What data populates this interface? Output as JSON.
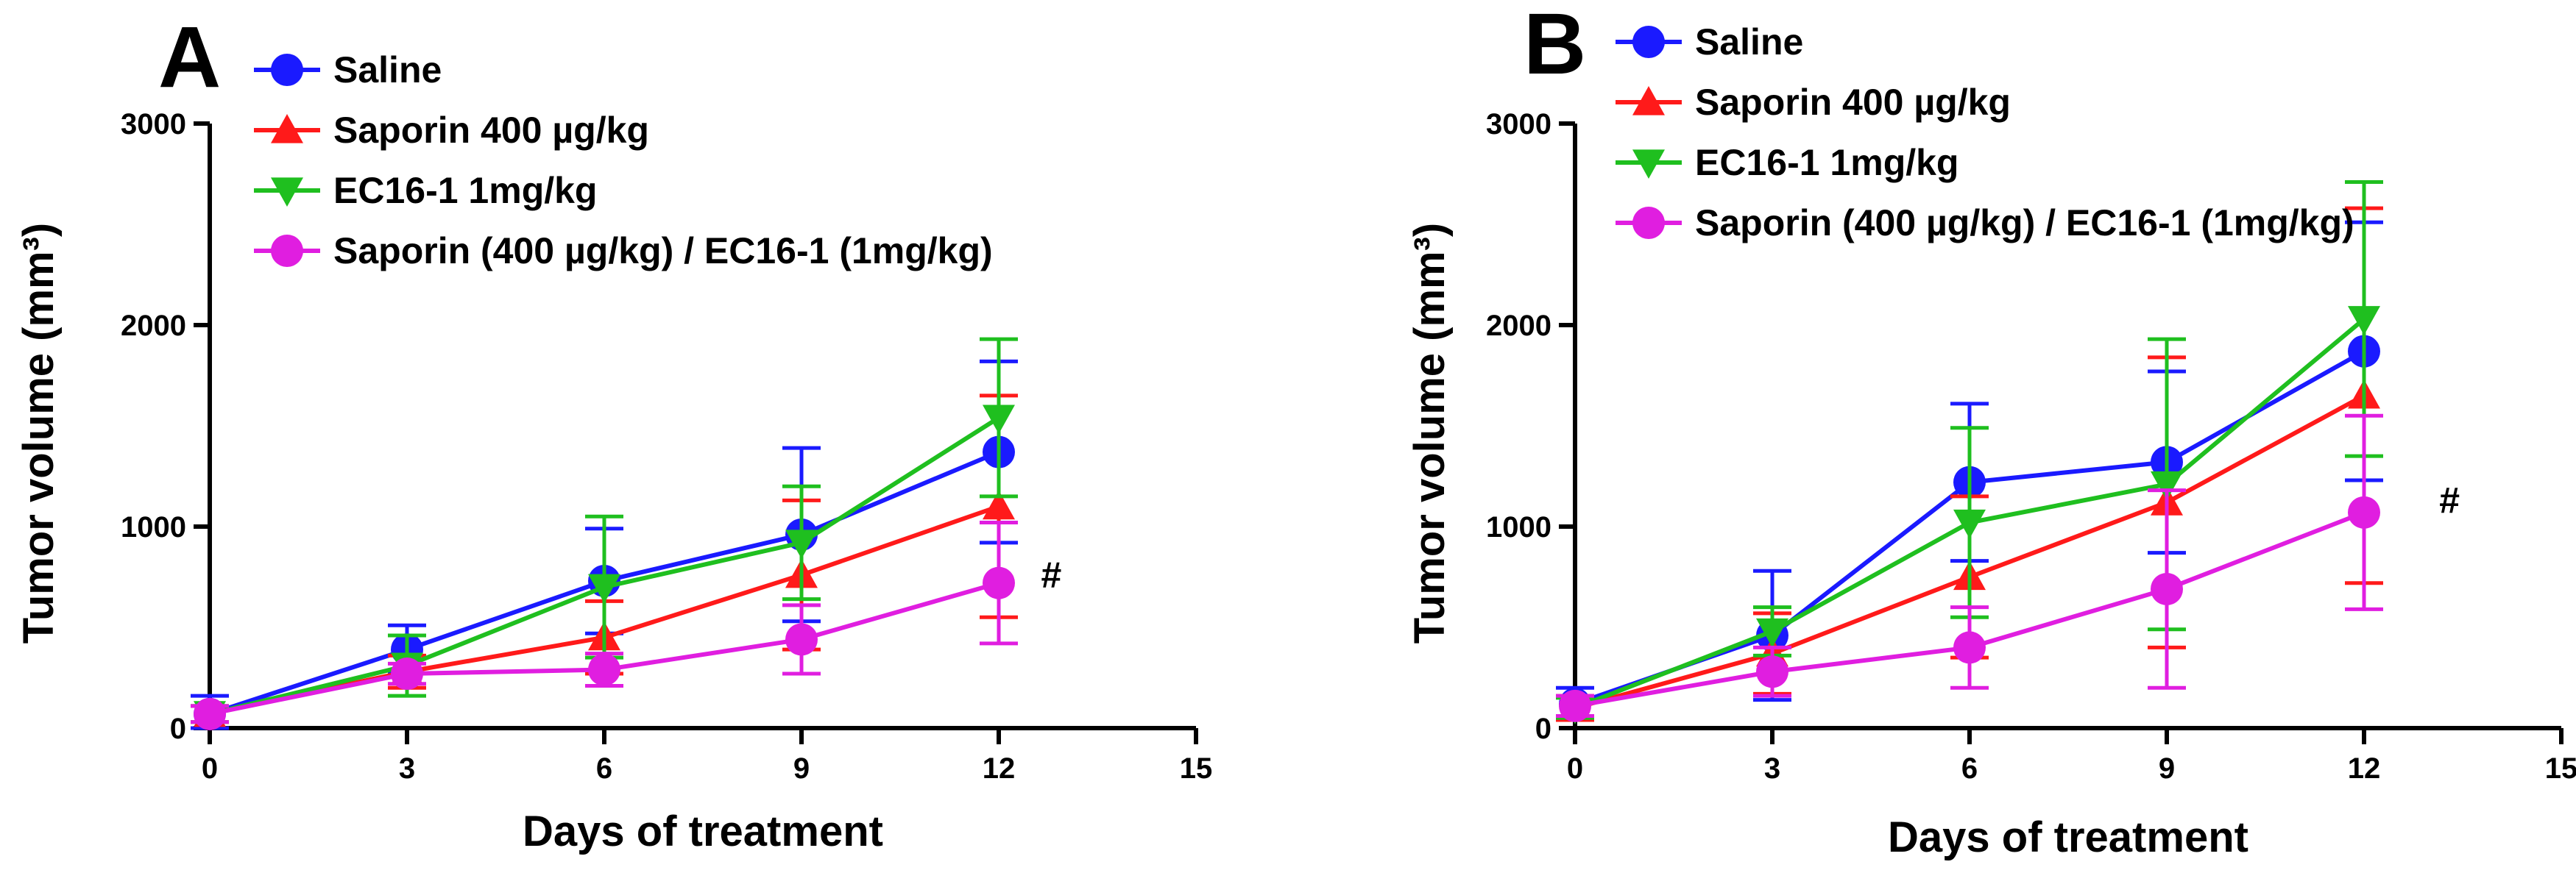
{
  "chart_data": [
    {
      "panel": "A",
      "type": "line",
      "xlabel": "Days of treatment",
      "ylabel": "Tumor volume (mm³)",
      "xlim": [
        0,
        15
      ],
      "ylim": [
        0,
        3000
      ],
      "xticks": [
        0,
        3,
        6,
        9,
        12,
        15
      ],
      "yticks": [
        0,
        1000,
        2000,
        3000
      ],
      "annotation": {
        "text": "#",
        "x": 12.8,
        "y": 760
      },
      "series": [
        {
          "name": "Saline",
          "color": "#1a1aff",
          "marker": "circle",
          "x": [
            0,
            3,
            6,
            9,
            12
          ],
          "y": [
            70,
            390,
            730,
            960,
            1370
          ],
          "err": [
            90,
            120,
            260,
            430,
            450
          ]
        },
        {
          "name": "Saporin 400 µg/kg",
          "color": "#ff1a1a",
          "marker": "triangle-up",
          "x": [
            0,
            3,
            6,
            9,
            12
          ],
          "y": [
            70,
            280,
            450,
            760,
            1100
          ],
          "err": [
            40,
            80,
            180,
            370,
            550
          ]
        },
        {
          "name": "EC16-1 1mg/kg",
          "color": "#1fbf1f",
          "marker": "triangle-down",
          "x": [
            0,
            3,
            6,
            9,
            12
          ],
          "y": [
            70,
            310,
            700,
            920,
            1540
          ],
          "err": [
            40,
            150,
            350,
            280,
            390
          ]
        },
        {
          "name": "Saporin (400 µg/kg) / EC16-1 (1mg/kg)",
          "color": "#e01ee0",
          "marker": "circle",
          "x": [
            0,
            3,
            6,
            9,
            12
          ],
          "y": [
            70,
            270,
            290,
            440,
            720
          ],
          "err": [
            40,
            50,
            80,
            170,
            300
          ]
        }
      ]
    },
    {
      "panel": "B",
      "type": "line",
      "xlabel": "Days of treatment",
      "ylabel": "Tumor volume (mm³)",
      "xlim": [
        0,
        15
      ],
      "ylim": [
        0,
        3000
      ],
      "xticks": [
        0,
        3,
        6,
        9,
        12,
        15
      ],
      "yticks": [
        0,
        1000,
        2000,
        3000
      ],
      "annotation": {
        "text": "#",
        "x": 13.3,
        "y": 1130
      },
      "series": [
        {
          "name": "Saline",
          "color": "#1a1aff",
          "marker": "circle",
          "x": [
            0,
            3,
            6,
            9,
            12
          ],
          "y": [
            120,
            460,
            1220,
            1320,
            1870
          ],
          "err": [
            80,
            320,
            390,
            450,
            640
          ]
        },
        {
          "name": "Saporin 400 µg/kg",
          "color": "#ff1a1a",
          "marker": "triangle-up",
          "x": [
            0,
            3,
            6,
            9,
            12
          ],
          "y": [
            100,
            370,
            750,
            1120,
            1650
          ],
          "err": [
            60,
            200,
            400,
            720,
            930
          ]
        },
        {
          "name": "EC16-1 1mg/kg",
          "color": "#1fbf1f",
          "marker": "triangle-down",
          "x": [
            0,
            3,
            6,
            9,
            12
          ],
          "y": [
            100,
            480,
            1020,
            1210,
            2030
          ],
          "err": [
            50,
            120,
            470,
            720,
            680
          ]
        },
        {
          "name": "Saporin (400 µg/kg) / EC16-1 (1mg/kg)",
          "color": "#e01ee0",
          "marker": "circle",
          "x": [
            0,
            3,
            6,
            9,
            12
          ],
          "y": [
            110,
            280,
            400,
            690,
            1070
          ],
          "err": [
            50,
            120,
            200,
            490,
            480
          ]
        }
      ]
    }
  ]
}
